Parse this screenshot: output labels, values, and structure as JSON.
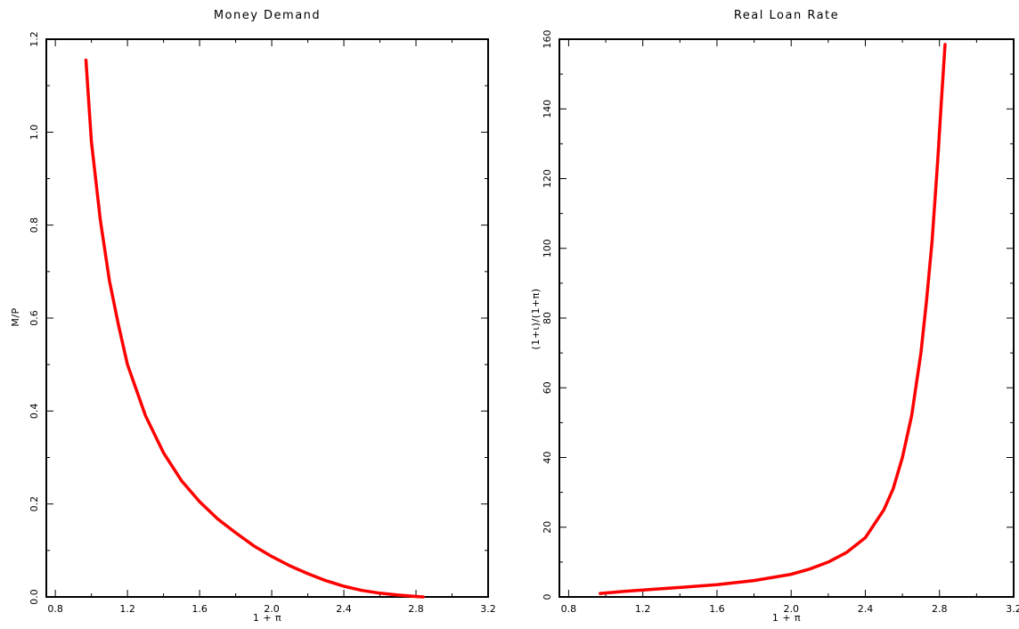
{
  "chart_data": [
    {
      "type": "line",
      "title": "Money Demand",
      "xlabel": "1 + π",
      "ylabel": "M/P",
      "xlim": [
        0.75,
        3.2
      ],
      "ylim": [
        0,
        1.2
      ],
      "x_ticks": [
        "0.8",
        "1.2",
        "1.6",
        "2.0",
        "2.4",
        "2.8",
        "3.2"
      ],
      "y_ticks": [
        "0.0",
        "0.2",
        "0.4",
        "0.6",
        "0.8",
        "1.0",
        "1.2"
      ],
      "line_color": "#ff0000",
      "series": [
        {
          "x": [
            0.97,
            1.0,
            1.05,
            1.1,
            1.15,
            1.2,
            1.3,
            1.4,
            1.5,
            1.6,
            1.7,
            1.8,
            1.9,
            2.0,
            2.1,
            2.2,
            2.3,
            2.4,
            2.5,
            2.6,
            2.7,
            2.8,
            2.84
          ],
          "y": [
            1.155,
            0.98,
            0.81,
            0.68,
            0.585,
            0.5,
            0.39,
            0.31,
            0.25,
            0.205,
            0.168,
            0.138,
            0.11,
            0.087,
            0.067,
            0.05,
            0.035,
            0.023,
            0.014,
            0.008,
            0.004,
            0.001,
            0.0
          ]
        }
      ]
    },
    {
      "type": "line",
      "title": "Real Loan Rate",
      "xlabel": "1 + π",
      "ylabel": "(1+ι)/(1+π)",
      "xlim": [
        0.75,
        3.2
      ],
      "ylim": [
        0,
        160
      ],
      "x_ticks": [
        "0.8",
        "1.2",
        "1.6",
        "2.0",
        "2.4",
        "2.8",
        "3.2"
      ],
      "y_ticks": [
        "0",
        "20",
        "40",
        "60",
        "80",
        "100",
        "120",
        "140",
        "160"
      ],
      "line_color": "#ff0000",
      "series": [
        {
          "x": [
            0.97,
            1.1,
            1.2,
            1.4,
            1.6,
            1.8,
            2.0,
            2.1,
            2.2,
            2.3,
            2.4,
            2.5,
            2.55,
            2.6,
            2.65,
            2.7,
            2.73,
            2.76,
            2.79,
            2.81,
            2.83
          ],
          "y": [
            1.0,
            1.6,
            2.0,
            2.7,
            3.5,
            4.7,
            6.5,
            8.0,
            10.0,
            12.8,
            17.0,
            25.0,
            31.0,
            40.0,
            52.0,
            70.0,
            85.0,
            102.0,
            125.0,
            142.0,
            158.5
          ]
        }
      ]
    }
  ]
}
